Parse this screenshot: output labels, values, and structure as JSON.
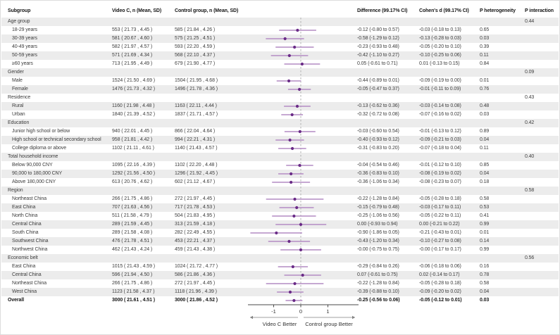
{
  "header": {
    "subgroup": "Subgroup",
    "videoc": "Video C, n (Mean, SD)",
    "control": "Control group, n (Mean, SD)",
    "difference": "Difference (99.17% CI)",
    "cohens_d": "Cohen's d (99.17% CI)",
    "p_heterogeneity": "P heterogeneity",
    "p_interaction": "P interaction"
  },
  "colors": {
    "ci_line": "#b48cc4",
    "point": "#6a2b87",
    "zero_line": "#b0b0b0",
    "axis": "#4a4a4a",
    "arrow": "#808080",
    "zebra": "#ececec"
  },
  "chart_data": {
    "type": "forest",
    "x_axis": {
      "ticks": [
        -1,
        0,
        1
      ],
      "range": [
        -2.0,
        2.1
      ],
      "zero_line": 0
    },
    "arrow_labels": {
      "left": "Video C Better",
      "right": "Control group Better"
    },
    "groups": [
      {
        "label": "Age group",
        "p_interaction": "0.44",
        "rows": [
          {
            "label": "18-29 years",
            "videoc": "553 ( 21.73 , 4.45 )",
            "control": "585 ( 21.84 , 4.26 )",
            "diff": "-0.12 (-0.80 to 0.57)",
            "cohen": "-0.03 (-0.18 to 0.13)",
            "p_het": "0.65",
            "est": -0.12,
            "lo": -0.8,
            "hi": 0.57
          },
          {
            "label": "30-39 years",
            "videoc": "581 ( 20.67 , 4.60 )",
            "control": "575 ( 21.25 , 4.51 )",
            "diff": "-0.58 (-1.29 to 0.12)",
            "cohen": "-0.13 (-0.28 to 0.03)",
            "p_het": "0.03",
            "est": -0.58,
            "lo": -1.29,
            "hi": 0.12
          },
          {
            "label": "40-49 years",
            "videoc": "582 ( 21.97 , 4.57 )",
            "control": "593 ( 22.20 , 4.59 )",
            "diff": "-0.23 (-0.93 to 0.48)",
            "cohen": "-0.05 (-0.20 to 0.10)",
            "p_het": "0.39",
            "est": -0.23,
            "lo": -0.93,
            "hi": 0.48
          },
          {
            "label": "50-59 years",
            "videoc": "571 ( 21.69 , 4.34 )",
            "control": "568 ( 22.10 , 4.37 )",
            "diff": "-0.42 (-1.10 to 0.27)",
            "cohen": "-0.10 (-0.25 to 0.06)",
            "p_het": "0.11",
            "est": -0.42,
            "lo": -1.1,
            "hi": 0.27
          },
          {
            "label": "≥60 years",
            "videoc": "713 ( 21.95 , 4.49 )",
            "control": "679 ( 21.90 , 4.77 )",
            "diff": "0.05 (-0.61 to 0.71)",
            "cohen": "0.01 (-0.13 to 0.15)",
            "p_het": "0.84",
            "est": 0.05,
            "lo": -0.61,
            "hi": 0.71
          }
        ]
      },
      {
        "label": "Gender",
        "p_interaction": "0.09",
        "rows": [
          {
            "label": "Male",
            "videoc": "1524 ( 21.50 , 4.69 )",
            "control": "1504 ( 21.95 , 4.68 )",
            "diff": "-0.44 (-0.89 to 0.01)",
            "cohen": "-0.09 (-0.19 to 0.00)",
            "p_het": "0.01",
            "est": -0.44,
            "lo": -0.89,
            "hi": 0.01
          },
          {
            "label": "Female",
            "videoc": "1476 ( 21.73 , 4.32 )",
            "control": "1496 ( 21.78 , 4.36 )",
            "diff": "-0.05 (-0.47 to 0.37)",
            "cohen": "-0.01 (-0.11 to 0.09)",
            "p_het": "0.76",
            "est": -0.05,
            "lo": -0.47,
            "hi": 0.37
          }
        ]
      },
      {
        "label": "Residence",
        "p_interaction": "0.43",
        "rows": [
          {
            "label": "Rural",
            "videoc": "1160 ( 21.98 , 4.48 )",
            "control": "1163 ( 22.11 , 4.44 )",
            "diff": "-0.13 (-0.62 to 0.36)",
            "cohen": "-0.03 (-0.14 to 0.08)",
            "p_het": "0.48",
            "est": -0.13,
            "lo": -0.62,
            "hi": 0.36
          },
          {
            "label": "Urban",
            "videoc": "1840 ( 21.39 , 4.52 )",
            "control": "1837 ( 21.71 , 4.57 )",
            "diff": "-0.32 (-0.72 to 0.08)",
            "cohen": "-0.07 (-0.16 to 0.02)",
            "p_het": "0.03",
            "est": -0.32,
            "lo": -0.72,
            "hi": 0.08
          }
        ]
      },
      {
        "label": "Education",
        "p_interaction": "0.42",
        "rows": [
          {
            "label": "Junior high school or below",
            "videoc": "940 ( 22.01 , 4.45 )",
            "control": "866 ( 22.04 , 4.64 )",
            "diff": "-0.03 (-0.60 to 0.54)",
            "cohen": "-0.01 (-0.13 to 0.12)",
            "p_het": "0.89",
            "est": -0.03,
            "lo": -0.6,
            "hi": 0.54
          },
          {
            "label": "High school or technical secondary school",
            "videoc": "958 ( 21.81 , 4.42 )",
            "control": "994 ( 22.21 , 4.31 )",
            "diff": "-0.40 (-0.93 to 0.12)",
            "cohen": "-0.09 (-0.21 to 0.03)",
            "p_het": "0.04",
            "est": -0.4,
            "lo": -0.93,
            "hi": 0.12
          },
          {
            "label": "College diploma or above",
            "videoc": "1102 ( 21.11 , 4.61 )",
            "control": "1140 ( 21.43 , 4.57 )",
            "diff": "-0.31 (-0.83 to 0.20)",
            "cohen": "-0.07 (-0.18 to 0.04)",
            "p_het": "0.11",
            "est": -0.31,
            "lo": -0.83,
            "hi": 0.2
          }
        ]
      },
      {
        "label": "Total household income",
        "p_interaction": "0.40",
        "rows": [
          {
            "label": "Below 90,000 CNY",
            "videoc": "1095 ( 22.16 , 4.39 )",
            "control": "1102 ( 22.20 , 4.48 )",
            "diff": "-0.04 (-0.54 to 0.46)",
            "cohen": "-0.01 (-0.12 to 0.10)",
            "p_het": "0.85",
            "est": -0.04,
            "lo": -0.54,
            "hi": 0.46
          },
          {
            "label": "90,000 to 180,000 CNY",
            "videoc": "1292 ( 21.56 , 4.50 )",
            "control": "1296 ( 21.92 , 4.45 )",
            "diff": "-0.36 (-0.83 to 0.10)",
            "cohen": "-0.08 (-0.19 to 0.02)",
            "p_het": "0.04",
            "est": -0.36,
            "lo": -0.83,
            "hi": 0.1
          },
          {
            "label": "Above 180,000 CNY",
            "videoc": "613 ( 20.76 , 4.62 )",
            "control": "602 ( 21.12 , 4.67 )",
            "diff": "-0.36 (-1.06 to 0.34)",
            "cohen": "-0.08 (-0.23 to 0.07)",
            "p_het": "0.18",
            "est": -0.36,
            "lo": -1.06,
            "hi": 0.34
          }
        ]
      },
      {
        "label": "Region",
        "p_interaction": "0.58",
        "rows": [
          {
            "label": "Northeast China",
            "videoc": "266 ( 21.75 , 4.86 )",
            "control": "272 ( 21.97 , 4.45 )",
            "diff": "-0.22 (-1.28 to 0.84)",
            "cohen": "-0.05 (-0.28 to 0.18)",
            "p_het": "0.58",
            "est": -0.22,
            "lo": -1.28,
            "hi": 0.84
          },
          {
            "label": "East China",
            "videoc": "707 ( 21.63 , 4.56 )",
            "control": "717 ( 21.78 , 4.53 )",
            "diff": "-0.15 (-0.79 to 0.48)",
            "cohen": "-0.03 (-0.17 to 0.11)",
            "p_het": "0.53",
            "est": -0.15,
            "lo": -0.79,
            "hi": 0.48
          },
          {
            "label": "North China",
            "videoc": "511 ( 21.58 , 4.79 )",
            "control": "504 ( 21.83 , 4.95 )",
            "diff": "-0.25 (-1.06 to 0.56)",
            "cohen": "-0.05 (-0.22 to 0.11)",
            "p_het": "0.41",
            "est": -0.25,
            "lo": -1.06,
            "hi": 0.56
          },
          {
            "label": "Central China",
            "videoc": "289 ( 21.59 , 4.45 )",
            "control": "313 ( 21.59 , 4.18 )",
            "diff": "0.00 (-0.93 to 0.94)",
            "cohen": "0.00 (-0.21 to 0.22)",
            "p_het": "0.99",
            "est": 0.0,
            "lo": -0.93,
            "hi": 0.94
          },
          {
            "label": "South China",
            "videoc": "289 ( 21.58 , 4.08 )",
            "control": "282 ( 22.49 , 4.55 )",
            "diff": "-0.90 (-1.86 to 0.05)",
            "cohen": "-0.21 (-0.43 to 0.01)",
            "p_het": "0.01",
            "est": -0.9,
            "lo": -1.86,
            "hi": 0.05
          },
          {
            "label": "Southwest China",
            "videoc": "476 ( 21.78 , 4.51 )",
            "control": "453 ( 22.21 , 4.37 )",
            "diff": "-0.43 (-1.20 to 0.34)",
            "cohen": "-0.10 (-0.27 to 0.08)",
            "p_het": "0.14",
            "est": -0.43,
            "lo": -1.2,
            "hi": 0.34
          },
          {
            "label": "Northwest China",
            "videoc": "462 ( 21.43 , 4.24 )",
            "control": "459 ( 21.43 , 4.38 )",
            "diff": "-0.00 (-0.75 to 0.75)",
            "cohen": "-0.00 (-0.17 to 0.17)",
            "p_het": "0.99",
            "est": -0.0,
            "lo": -0.75,
            "hi": 0.75
          }
        ]
      },
      {
        "label": "Economic belt",
        "p_interaction": "0.56",
        "rows": [
          {
            "label": "East China",
            "videoc": "1015 ( 21.43 , 4.59 )",
            "control": "1024 ( 21.72 , 4.77 )",
            "diff": "-0.29 (-0.84 to 0.26)",
            "cohen": "-0.06 (-0.18 to 0.06)",
            "p_het": "0.16",
            "est": -0.29,
            "lo": -0.84,
            "hi": 0.26
          },
          {
            "label": "Central China",
            "videoc": "596 ( 21.94 , 4.50 )",
            "control": "586 ( 21.86 , 4.36 )",
            "diff": "0.07 (-0.61 to 0.75)",
            "cohen": "0.02 (-0.14 to 0.17)",
            "p_het": "0.78",
            "est": 0.07,
            "lo": -0.61,
            "hi": 0.75
          },
          {
            "label": "Northeast China",
            "videoc": "266 ( 21.75 , 4.86 )",
            "control": "272 ( 21.97 , 4.45 )",
            "diff": "-0.22 (-1.28 to 0.84)",
            "cohen": "-0.05 (-0.28 to 0.18)",
            "p_het": "0.58",
            "est": -0.22,
            "lo": -1.28,
            "hi": 0.84
          },
          {
            "label": "West China",
            "videoc": "1123 ( 21.58 , 4.37 )",
            "control": "1118 ( 21.96 , 4.39 )",
            "diff": "-0.39 (-0.88 to 0.10)",
            "cohen": "-0.09 (-0.20 to 0.02)",
            "p_het": "0.04",
            "est": -0.39,
            "lo": -0.88,
            "hi": 0.1
          }
        ]
      }
    ],
    "overall": {
      "label": "Overall",
      "videoc": "3000 ( 21.61 , 4.51 )",
      "control": "3000 ( 21.86 , 4.52 )",
      "diff": "-0.25 (-0.56 to 0.06)",
      "cohen": "-0.05 (-0.12 to 0.01)",
      "p_het": "0.03",
      "est": -0.25,
      "lo": -0.56,
      "hi": 0.06
    }
  }
}
